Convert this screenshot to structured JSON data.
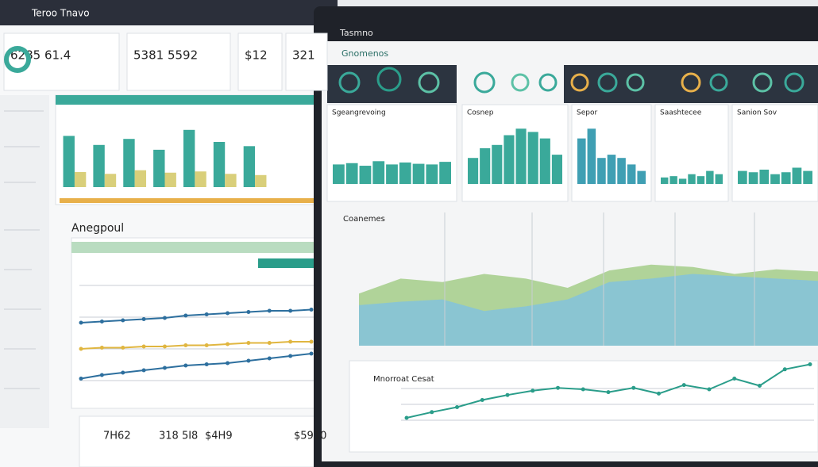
{
  "left": {
    "title": "Teroo Tnavo",
    "kpis": [
      "6285 61.4",
      "5381 5592",
      "$12",
      "321"
    ],
    "bar_chart": {
      "type": "bar",
      "ylim": [
        0,
        100
      ],
      "series": [
        {
          "color": "#3aa99a",
          "values": [
            85,
            70,
            80,
            62,
            95,
            75,
            68
          ]
        },
        {
          "color": "#d9cf7a",
          "values": [
            25,
            22,
            28,
            24,
            26,
            22,
            20
          ]
        }
      ]
    },
    "section_title": "Anegpoul",
    "line_chart": {
      "type": "line",
      "ylim": [
        0,
        100
      ],
      "series": [
        {
          "color": "#2d6f9e",
          "values": [
            62,
            63,
            64,
            65,
            66,
            68,
            69,
            70,
            71,
            72,
            72,
            73
          ]
        },
        {
          "color": "#e0b640",
          "values": [
            40,
            41,
            41,
            42,
            42,
            43,
            43,
            44,
            45,
            45,
            46,
            46
          ]
        },
        {
          "color": "#2d6f9e",
          "values": [
            15,
            18,
            20,
            22,
            24,
            26,
            27,
            28,
            30,
            32,
            34,
            36
          ]
        }
      ]
    },
    "footer_kpis": [
      "7H62",
      "318 5I8",
      "$4H9",
      "$5910"
    ]
  },
  "right": {
    "header": "Tasmno",
    "subtitle": "Gnomenos",
    "panels": [
      {
        "title": "Sgeangrevoing",
        "ylim": [
          0,
          100
        ],
        "values": [
          30,
          32,
          28,
          35,
          30,
          33,
          31,
          30,
          34
        ]
      },
      {
        "title": "Cosnep",
        "ylim": [
          0,
          100
        ],
        "values": [
          40,
          55,
          60,
          75,
          85,
          80,
          70,
          45
        ]
      },
      {
        "title": "Sepor",
        "ylim": [
          0,
          100
        ],
        "values": [
          70,
          85,
          40,
          45,
          40,
          30,
          20
        ]
      },
      {
        "title": "Saashtecee",
        "ylim": [
          0,
          100
        ],
        "values": [
          10,
          12,
          8,
          15,
          12,
          20,
          15
        ]
      },
      {
        "title": "Sanion Sov",
        "ylim": [
          0,
          100
        ],
        "values": [
          20,
          18,
          22,
          15,
          18,
          25,
          20
        ]
      }
    ],
    "area_chart": {
      "type": "area",
      "title": "Coanemes",
      "ylim": [
        0,
        100
      ],
      "series": [
        {
          "color": "#a8cf8f",
          "values": [
            45,
            58,
            55,
            62,
            58,
            50,
            65,
            70,
            68,
            62,
            66,
            64
          ]
        },
        {
          "color": "#86c3d8",
          "values": [
            35,
            38,
            40,
            30,
            34,
            40,
            55,
            58,
            62,
            60,
            58,
            56
          ]
        }
      ]
    },
    "line_chart": {
      "type": "line",
      "title": "Mnorroat Cesat",
      "ylim": [
        0,
        100
      ],
      "series": [
        {
          "color": "#2a9d8a",
          "values": [
            20,
            28,
            35,
            45,
            52,
            58,
            62,
            60,
            56,
            62,
            54,
            66,
            60,
            75,
            65,
            88,
            95
          ]
        }
      ]
    }
  }
}
